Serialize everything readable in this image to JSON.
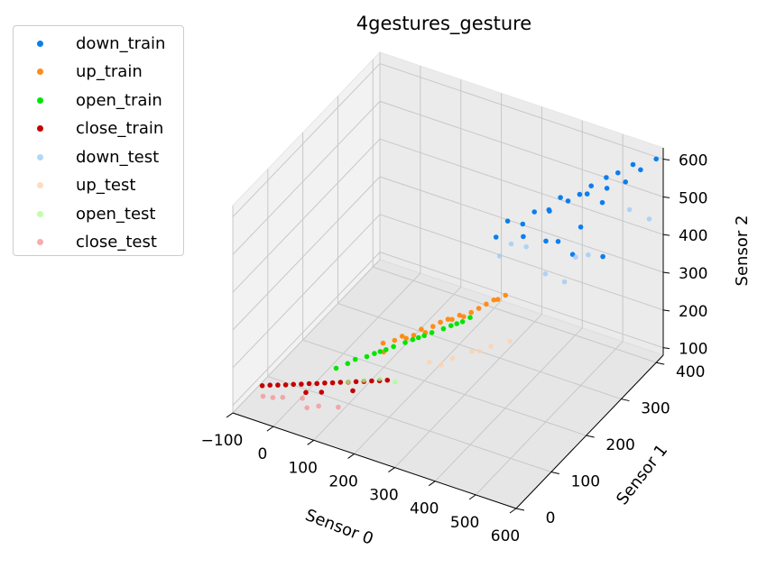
{
  "chart_data": {
    "type": "scatter",
    "projection": "3d",
    "title": "4gestures_gesture",
    "xlabel": "Sensor 0",
    "ylabel": "Sensor 1",
    "zlabel": "Sensor 2",
    "xlim": [
      -100,
      600
    ],
    "ylim": [
      0,
      420
    ],
    "zlim": [
      80,
      630
    ],
    "xticks": [
      -100,
      0,
      100,
      200,
      300,
      400,
      500,
      600
    ],
    "yticks": [
      0,
      100,
      200,
      300,
      400
    ],
    "zticks": [
      100,
      200,
      300,
      400,
      500,
      600
    ],
    "xtick_labels": [
      "−100",
      "0",
      "100",
      "200",
      "300",
      "400",
      "500",
      "600"
    ],
    "ytick_labels": [
      "0",
      "100",
      "200",
      "300",
      "400"
    ],
    "ztick_labels": [
      "100",
      "200",
      "300",
      "400",
      "500",
      "600"
    ],
    "grid": true,
    "legend_position": "outside-top-left",
    "series": [
      {
        "name": "down_train",
        "color": "#0a7ef0",
        "alpha": 1.0,
        "points": [
          [
            380,
            230,
            540
          ],
          [
            420,
            260,
            550
          ],
          [
            450,
            300,
            560
          ],
          [
            500,
            330,
            580
          ],
          [
            540,
            360,
            600
          ],
          [
            480,
            320,
            560
          ],
          [
            440,
            280,
            540
          ],
          [
            520,
            350,
            590
          ],
          [
            560,
            380,
            610
          ],
          [
            400,
            250,
            520
          ],
          [
            460,
            310,
            545
          ],
          [
            530,
            340,
            575
          ],
          [
            410,
            240,
            500
          ],
          [
            440,
            270,
            470
          ],
          [
            480,
            300,
            420
          ],
          [
            520,
            340,
            390
          ],
          [
            500,
            300,
            500
          ],
          [
            550,
            370,
            570
          ],
          [
            570,
            390,
            590
          ],
          [
            600,
            400,
            620
          ],
          [
            360,
            220,
            500
          ],
          [
            430,
            290,
            530
          ],
          [
            490,
            330,
            555
          ],
          [
            510,
            350,
            520
          ],
          [
            470,
            270,
            480
          ]
        ]
      },
      {
        "name": "up_train",
        "color": "#ff8c1a",
        "alpha": 1.0,
        "points": [
          [
            150,
            140,
            220
          ],
          [
            180,
            160,
            230
          ],
          [
            210,
            180,
            240
          ],
          [
            240,
            200,
            250
          ],
          [
            270,
            220,
            260
          ],
          [
            300,
            240,
            270
          ],
          [
            320,
            260,
            280
          ],
          [
            200,
            170,
            230
          ],
          [
            230,
            190,
            245
          ],
          [
            260,
            210,
            255
          ],
          [
            290,
            230,
            265
          ],
          [
            170,
            150,
            225
          ],
          [
            310,
            250,
            275
          ],
          [
            340,
            270,
            290
          ],
          [
            160,
            130,
            210
          ],
          [
            220,
            180,
            235
          ],
          [
            280,
            220,
            260
          ],
          [
            330,
            260,
            285
          ],
          [
            190,
            160,
            228
          ],
          [
            250,
            210,
            252
          ]
        ]
      },
      {
        "name": "open_train",
        "color": "#00e600",
        "alpha": 1.0,
        "points": [
          [
            80,
            120,
            160
          ],
          [
            110,
            140,
            170
          ],
          [
            140,
            160,
            180
          ],
          [
            170,
            180,
            190
          ],
          [
            200,
            200,
            200
          ],
          [
            230,
            220,
            210
          ],
          [
            260,
            240,
            220
          ],
          [
            120,
            150,
            172
          ],
          [
            150,
            170,
            182
          ],
          [
            180,
            190,
            192
          ],
          [
            210,
            210,
            202
          ],
          [
            240,
            230,
            212
          ],
          [
            90,
            130,
            165
          ],
          [
            270,
            250,
            225
          ],
          [
            60,
            110,
            150
          ],
          [
            130,
            155,
            176
          ],
          [
            190,
            195,
            196
          ],
          [
            250,
            235,
            216
          ]
        ]
      },
      {
        "name": "close_train",
        "color": "#c40000",
        "alpha": 1.0,
        "points": [
          [
            -60,
            60,
            110
          ],
          [
            -30,
            70,
            112
          ],
          [
            0,
            80,
            115
          ],
          [
            30,
            90,
            118
          ],
          [
            60,
            100,
            121
          ],
          [
            90,
            110,
            124
          ],
          [
            120,
            120,
            127
          ],
          [
            150,
            130,
            130
          ],
          [
            -45,
            65,
            111
          ],
          [
            -15,
            75,
            114
          ],
          [
            15,
            85,
            117
          ],
          [
            45,
            95,
            120
          ],
          [
            75,
            105,
            123
          ],
          [
            105,
            115,
            126
          ],
          [
            135,
            125,
            129
          ],
          [
            -75,
            55,
            108
          ],
          [
            165,
            135,
            132
          ],
          [
            20,
            70,
            110
          ],
          [
            50,
            80,
            112
          ],
          [
            110,
            100,
            118
          ]
        ]
      },
      {
        "name": "down_test",
        "color": "#99c9f5",
        "alpha": 0.75,
        "points": [
          [
            360,
            230,
            440
          ],
          [
            400,
            260,
            450
          ],
          [
            430,
            280,
            370
          ],
          [
            460,
            300,
            340
          ],
          [
            510,
            310,
            420
          ],
          [
            560,
            370,
            500
          ],
          [
            600,
            380,
            480
          ],
          [
            380,
            240,
            470
          ],
          [
            470,
            320,
            390
          ]
        ]
      },
      {
        "name": "up_test",
        "color": "#ffd0a8",
        "alpha": 0.75,
        "points": [
          [
            230,
            180,
            160
          ],
          [
            270,
            200,
            165
          ],
          [
            300,
            220,
            175
          ],
          [
            330,
            240,
            180
          ],
          [
            360,
            260,
            185
          ],
          [
            250,
            190,
            150
          ],
          [
            310,
            230,
            170
          ]
        ]
      },
      {
        "name": "open_test",
        "color": "#a8ff90",
        "alpha": 0.75,
        "points": [
          [
            120,
            120,
            130
          ],
          [
            150,
            130,
            135
          ],
          [
            180,
            140,
            128
          ],
          [
            90,
            110,
            125
          ]
        ]
      },
      {
        "name": "close_test",
        "color": "#f59090",
        "alpha": 0.75,
        "points": [
          [
            -60,
            40,
            100
          ],
          [
            -20,
            50,
            102
          ],
          [
            20,
            60,
            104
          ],
          [
            60,
            60,
            98
          ],
          [
            100,
            70,
            100
          ],
          [
            40,
            50,
            96
          ],
          [
            -40,
            45,
            99
          ]
        ]
      }
    ]
  }
}
